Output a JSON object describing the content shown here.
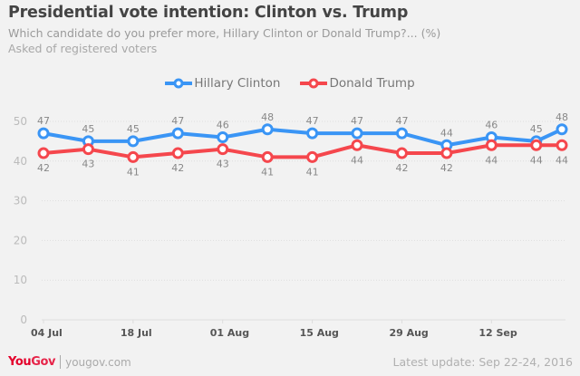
{
  "header": {
    "title": "Presidential vote intention: Clinton vs. Trump",
    "subtitle": "Which candidate do you prefer more, Hillary Clinton or Donald Trump?... (%)",
    "note": "Asked of registered voters"
  },
  "footer": {
    "logo_you": "You",
    "logo_gov": "Gov",
    "site": "yougov.com",
    "update": "Latest update: Sep 22-24, 2016"
  },
  "chart_data": {
    "type": "line",
    "title": "Presidential vote intention: Clinton vs. Trump",
    "xlabel": "",
    "ylabel": "",
    "ylim": [
      0,
      50
    ],
    "y_ticks": [
      "0",
      "10",
      "20",
      "30",
      "40",
      "50"
    ],
    "x_ticks": [
      "04 Jul",
      "18 Jul",
      "01 Aug",
      "15 Aug",
      "29 Aug",
      "12 Sep"
    ],
    "x_tick_days": [
      0,
      14,
      28,
      42,
      56,
      70
    ],
    "x_days": [
      0,
      7,
      14,
      21,
      28,
      35,
      42,
      49,
      56,
      63,
      70,
      77,
      81
    ],
    "x": [
      "Jul 04",
      "Jul 11",
      "Jul 18",
      "Jul 25",
      "Aug 01",
      "Aug 08",
      "Aug 15",
      "Aug 22",
      "Aug 29",
      "Sep 05",
      "Sep 12",
      "Sep 19",
      "Sep 23"
    ],
    "grid": true,
    "legend_position": "top-center",
    "series": [
      {
        "name": "Hillary Clinton",
        "color": "#3a95f5",
        "values": [
          47,
          45,
          45,
          47,
          46,
          48,
          47,
          47,
          47,
          44,
          46,
          45,
          48
        ]
      },
      {
        "name": "Donald Trump",
        "color": "#f5474d",
        "values": [
          42,
          43,
          41,
          42,
          43,
          41,
          41,
          44,
          42,
          42,
          44,
          44,
          44
        ]
      }
    ]
  }
}
